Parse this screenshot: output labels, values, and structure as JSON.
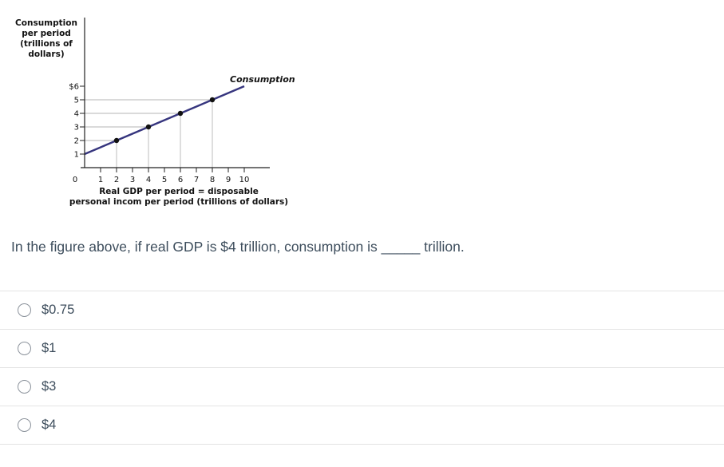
{
  "chart": {
    "y_axis_title_lines": [
      "Consumption",
      "per period",
      "(trillions of",
      "dollars)"
    ],
    "x_axis_title_lines": [
      "Real GDP per period = disposable",
      "personal incom per period (trillions of dollars)"
    ],
    "line_label": "Consumption",
    "line_color": "#36357e",
    "y_ticks": [
      "$6",
      "5",
      "4",
      "3",
      "2",
      "1"
    ],
    "x_ticks": [
      "0",
      "1",
      "2",
      "3",
      "4",
      "5",
      "6",
      "7",
      "8",
      "9",
      "10"
    ]
  },
  "chart_data": {
    "type": "line",
    "title": "",
    "xlabel": "Real GDP per period = disposable personal incom per period (trillions of dollars)",
    "ylabel": "Consumption per period (trillions of dollars)",
    "xlim": [
      0,
      10
    ],
    "ylim": [
      0,
      6
    ],
    "grid": "partial-dropped-lines",
    "legend": "inline-label",
    "series": [
      {
        "name": "Consumption",
        "x": [
          0,
          2,
          4,
          6,
          8,
          10
        ],
        "y": [
          1,
          2,
          3,
          4,
          5,
          6
        ]
      }
    ],
    "points": [
      [
        2,
        2
      ],
      [
        4,
        3
      ],
      [
        6,
        4
      ],
      [
        8,
        5
      ]
    ]
  },
  "question": {
    "text": "In the figure above, if real GDP is $4 trillion, consumption is _____ trillion."
  },
  "options": [
    {
      "label": "$0.75"
    },
    {
      "label": "$1"
    },
    {
      "label": "$3"
    },
    {
      "label": "$4"
    }
  ]
}
